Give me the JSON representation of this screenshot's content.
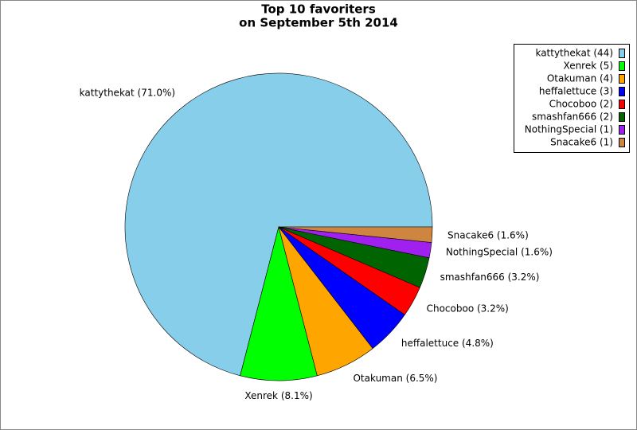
{
  "chart_data": {
    "type": "pie",
    "title": "Top 10 favoriters",
    "subtitle": "on September 5th 2014",
    "categories": [
      "kattythekat (44)",
      "Xenrek (5)",
      "Otakuman (4)",
      "heffalettuce (3)",
      "Chocoboo (2)",
      "smashfan666 (2)",
      "NothingSpecial (1)",
      "Snacake6 (1)"
    ],
    "values": [
      44,
      5,
      4,
      3,
      2,
      2,
      1,
      1
    ],
    "value_labels": [
      "kattythekat (71.0%)",
      "Xenrek (8.1%)",
      "Otakuman (6.5%)",
      "heffalettuce (4.8%)",
      "Chocoboo (3.2%)",
      "smashfan666 (3.2%)",
      "NothingSpecial (1.6%)",
      "Snacake6 (1.6%)"
    ],
    "colors": [
      "#87ceeb",
      "#00ff00",
      "#ffa500",
      "#0000ff",
      "#ff0000",
      "#006400",
      "#a020f0",
      "#cd853f"
    ],
    "legend": "top-right"
  }
}
